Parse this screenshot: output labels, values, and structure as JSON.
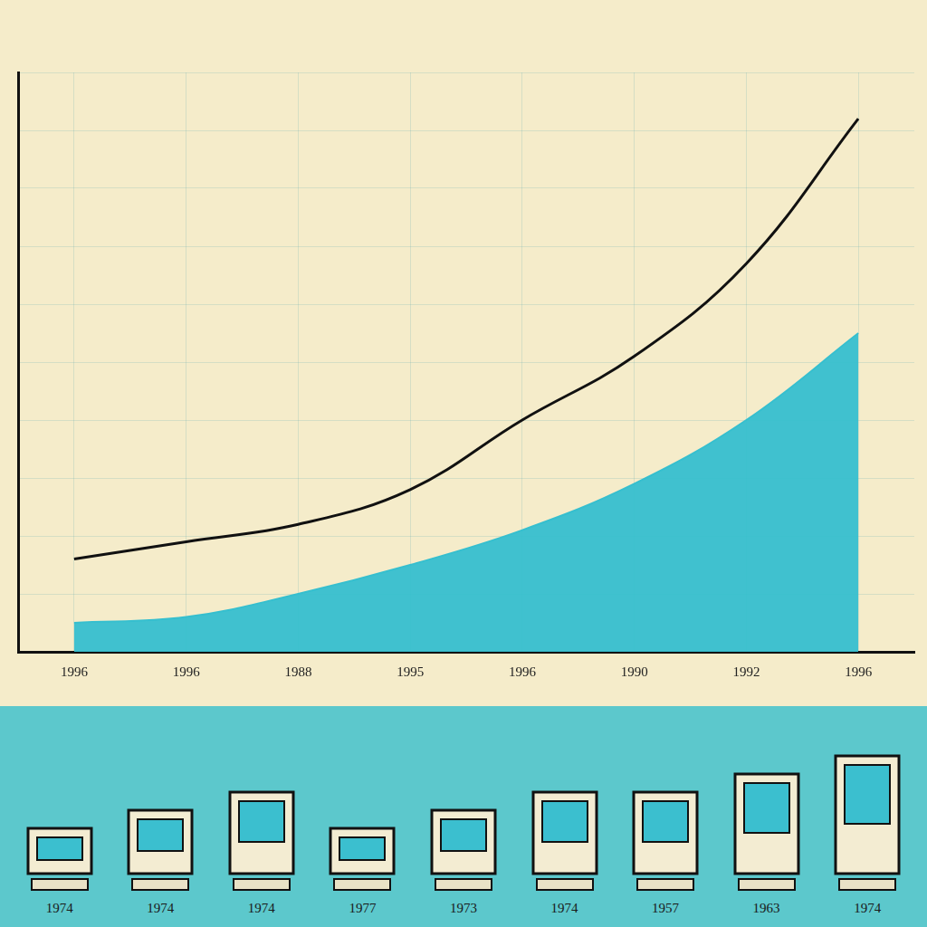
{
  "chart_data": {
    "type": "line",
    "categories": [
      "1996",
      "1996",
      "1988",
      "1995",
      "1996",
      "1990",
      "1992",
      "1996"
    ],
    "series": [
      {
        "type": "line",
        "color": "#111111",
        "values": [
          16,
          19,
          22,
          28,
          40,
          51,
          67,
          92
        ]
      },
      {
        "type": "area",
        "color": "#36bfcf",
        "values": [
          5,
          6,
          10,
          15,
          21,
          29,
          40,
          55
        ]
      }
    ],
    "ylim": [
      0,
      100
    ],
    "yticks": [
      0,
      10,
      20,
      30,
      40,
      50,
      60,
      70,
      80,
      90,
      100
    ],
    "grid": true,
    "tick_labels": "x"
  },
  "strip": {
    "labels": [
      "1974",
      "1974",
      "1974",
      "1977",
      "1973",
      "1974",
      "1957",
      "1963",
      "1974"
    ]
  }
}
